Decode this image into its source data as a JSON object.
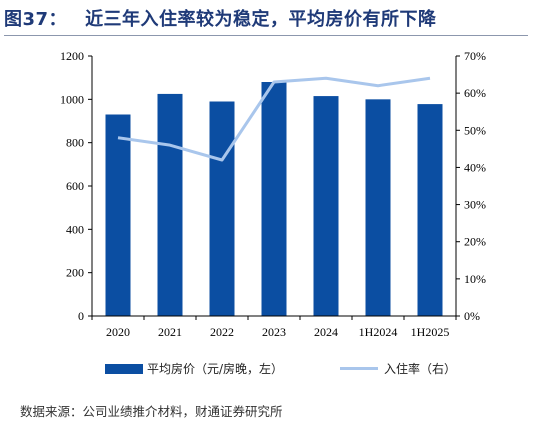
{
  "title": {
    "figure_no": "图37：",
    "text": "近三年入住率较为稳定，平均房价有所下降"
  },
  "colors": {
    "bar": "#0b4ea2",
    "line": "#a9c6ec",
    "title": "#1f3a78"
  },
  "chart_data": {
    "type": "bar",
    "categories": [
      "2020",
      "2021",
      "2022",
      "2023",
      "2024",
      "1H2024",
      "1H2025"
    ],
    "series": [
      {
        "name": "平均房价（元/房晚，左）",
        "type": "bar",
        "axis": "left",
        "values": [
          930,
          1025,
          990,
          1080,
          1015,
          1000,
          978
        ]
      },
      {
        "name": "入住率（右）",
        "type": "line",
        "axis": "right",
        "values": [
          48,
          46,
          42,
          63,
          64,
          62,
          64
        ]
      }
    ],
    "y_left": {
      "ylim": [
        0,
        1200
      ],
      "ticks": [
        "0",
        "200",
        "400",
        "600",
        "800",
        "1000",
        "1200"
      ]
    },
    "y_right": {
      "ylim": [
        0,
        70
      ],
      "ticks": [
        "0%",
        "10%",
        "20%",
        "30%",
        "40%",
        "50%",
        "60%",
        "70%"
      ]
    },
    "grid": false,
    "legend_position": "bottom"
  },
  "source": "数据来源：公司业绩推介材料，财通证券研究所"
}
